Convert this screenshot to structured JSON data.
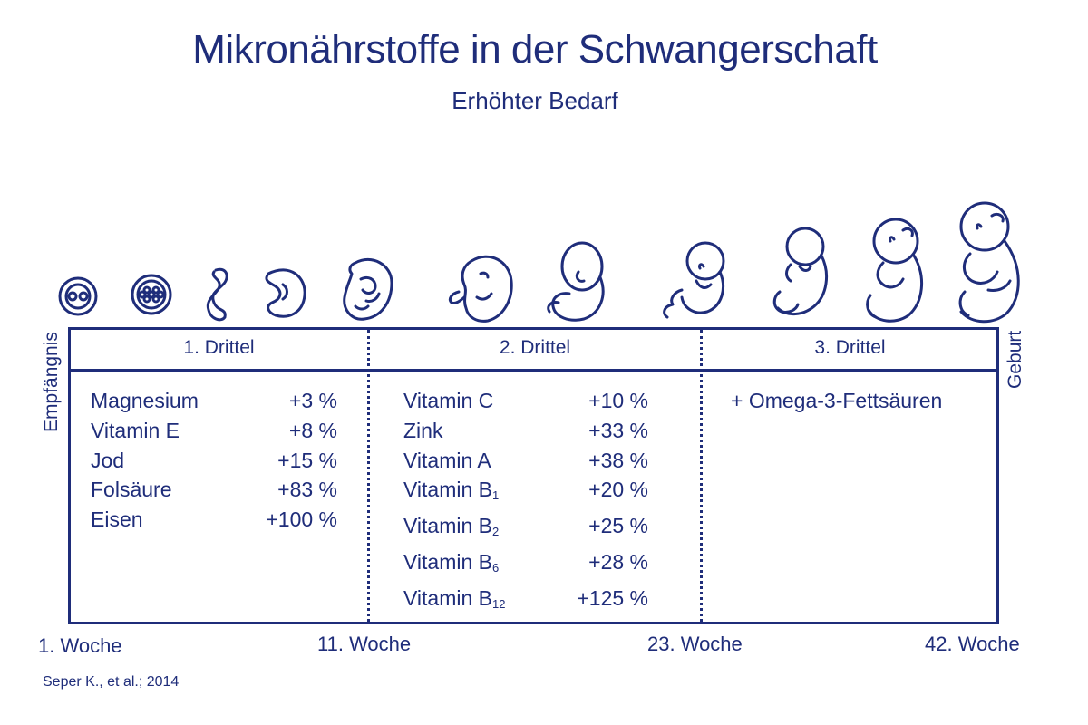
{
  "title": "Mikronährstoffe in der Schwangerschaft",
  "subtitle": "Erhöhter Bedarf",
  "left_label": "Empfängnis",
  "right_label": "Geburt",
  "source": "Seper K., et al.; 2014",
  "colors": {
    "primary": "#1f2d7a",
    "background": "#ffffff"
  },
  "embryo_icons": [
    "zygote-icon",
    "morula-icon",
    "early-embryo-icon",
    "curled-embryo-icon",
    "embryo-icon",
    "fetus-icon",
    "fetus-icon",
    "fetus-icon",
    "fetus-icon",
    "fetus-icon",
    "fetus-icon"
  ],
  "trimesters": [
    {
      "label": "1. Drittel",
      "nutrients": [
        {
          "name": "Magnesium",
          "sub": "",
          "value": "+3 %"
        },
        {
          "name": "Vitamin E",
          "sub": "",
          "value": "+8 %"
        },
        {
          "name": "Jod",
          "sub": "",
          "value": "+15 %"
        },
        {
          "name": "Folsäure",
          "sub": "",
          "value": "+83 %"
        },
        {
          "name": "Eisen",
          "sub": "",
          "value": "+100 %"
        }
      ]
    },
    {
      "label": "2. Drittel",
      "nutrients": [
        {
          "name": "Vitamin C",
          "sub": "",
          "value": "+10 %"
        },
        {
          "name": "Zink",
          "sub": "",
          "value": "+33 %"
        },
        {
          "name": "Vitamin A",
          "sub": "",
          "value": "+38 %"
        },
        {
          "name": "Vitamin B",
          "sub": "1",
          "value": "+20 %"
        },
        {
          "name": "Vitamin B",
          "sub": "2",
          "value": "+25 %"
        },
        {
          "name": "Vitamin B",
          "sub": "6",
          "value": "+28 %"
        },
        {
          "name": "Vitamin B",
          "sub": "12",
          "value": "+125 %"
        }
      ]
    },
    {
      "label": "3. Drittel",
      "nutrients": [
        {
          "name": "+ Omega-3-Fettsäuren",
          "sub": "",
          "value": ""
        }
      ]
    }
  ],
  "weeks": [
    "1. Woche",
    "11. Woche",
    "23. Woche",
    "42. Woche"
  ]
}
